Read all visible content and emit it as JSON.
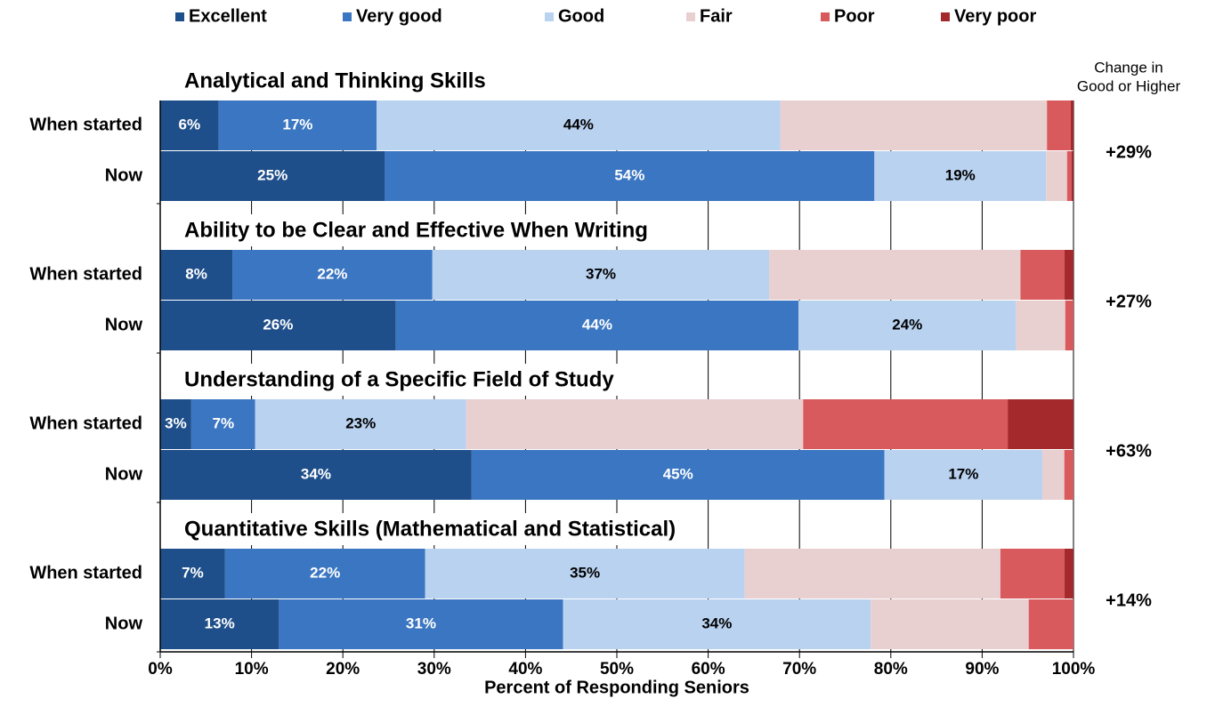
{
  "chart_data": {
    "type": "bar",
    "orientation": "horizontal",
    "stacked": true,
    "x_label": "Percent of Responding Seniors",
    "change_header": [
      "Change in",
      "Good or Higher"
    ],
    "panels": [
      {
        "title": "Analytical and Thinking Skills",
        "change": "+29%"
      },
      {
        "title": "Ability to be Clear and Effective When Writing",
        "change": "+27%"
      },
      {
        "title": "Understanding of a Specific Field of Study",
        "change": "+63%"
      },
      {
        "title": "Quantitative Skills (Mathematical and Statistical)",
        "change": "+14%"
      }
    ],
    "categories": [
      "When started",
      "Now",
      "When started",
      "Now",
      "When started",
      "Now",
      "When started",
      "Now"
    ],
    "series": [
      {
        "name": "Excellent",
        "color": "#1f4f8a",
        "values": [
          6.4,
          24.6,
          7.9,
          25.8,
          3.4,
          34.1,
          7.1,
          13.0
        ],
        "value_labels": [
          "6%",
          "25%",
          "8%",
          "26%",
          "3%",
          "34%",
          "7%",
          "13%"
        ]
      },
      {
        "name": "Very good",
        "color": "#3b76c2",
        "values": [
          17.3,
          53.6,
          21.9,
          44.1,
          7.0,
          45.2,
          21.9,
          31.1
        ],
        "value_labels": [
          "17%",
          "54%",
          "22%",
          "44%",
          "7%",
          "45%",
          "22%",
          "31%"
        ]
      },
      {
        "name": "Good",
        "color": "#b9d2f0",
        "values": [
          44.2,
          18.8,
          36.9,
          23.8,
          23.1,
          17.3,
          35.0,
          33.7
        ],
        "value_labels": [
          "44%",
          "19%",
          "37%",
          "24%",
          "23%",
          "17%",
          "35%",
          "34%"
        ]
      },
      {
        "name": "Fair",
        "color": "#e8cfd0",
        "values": [
          29.2,
          2.3,
          27.5,
          5.4,
          36.9,
          2.4,
          28.0,
          17.3
        ]
      },
      {
        "name": "Poor",
        "color": "#d95a5c",
        "values": [
          2.6,
          0.5,
          4.8,
          0.9,
          22.4,
          1.0,
          7.0,
          4.9
        ]
      },
      {
        "name": "Very poor",
        "color": "#a3292c",
        "values": [
          0.3,
          0.2,
          1.0,
          0,
          7.2,
          0,
          1.0,
          0
        ]
      }
    ],
    "xlim": [
      0,
      100
    ],
    "xticks": [
      {
        "value": 0,
        "label": "0%"
      },
      {
        "value": 10,
        "label": "10%"
      },
      {
        "value": 20,
        "label": "20%"
      },
      {
        "value": 30,
        "label": "30%"
      },
      {
        "value": 40,
        "label": "40%"
      },
      {
        "value": 50,
        "label": "50%"
      },
      {
        "value": 60,
        "label": "60%"
      },
      {
        "value": 70,
        "label": "70%"
      },
      {
        "value": 80,
        "label": "80%"
      },
      {
        "value": 90,
        "label": "90%"
      },
      {
        "value": 100,
        "label": "100%"
      }
    ],
    "grid": true
  }
}
